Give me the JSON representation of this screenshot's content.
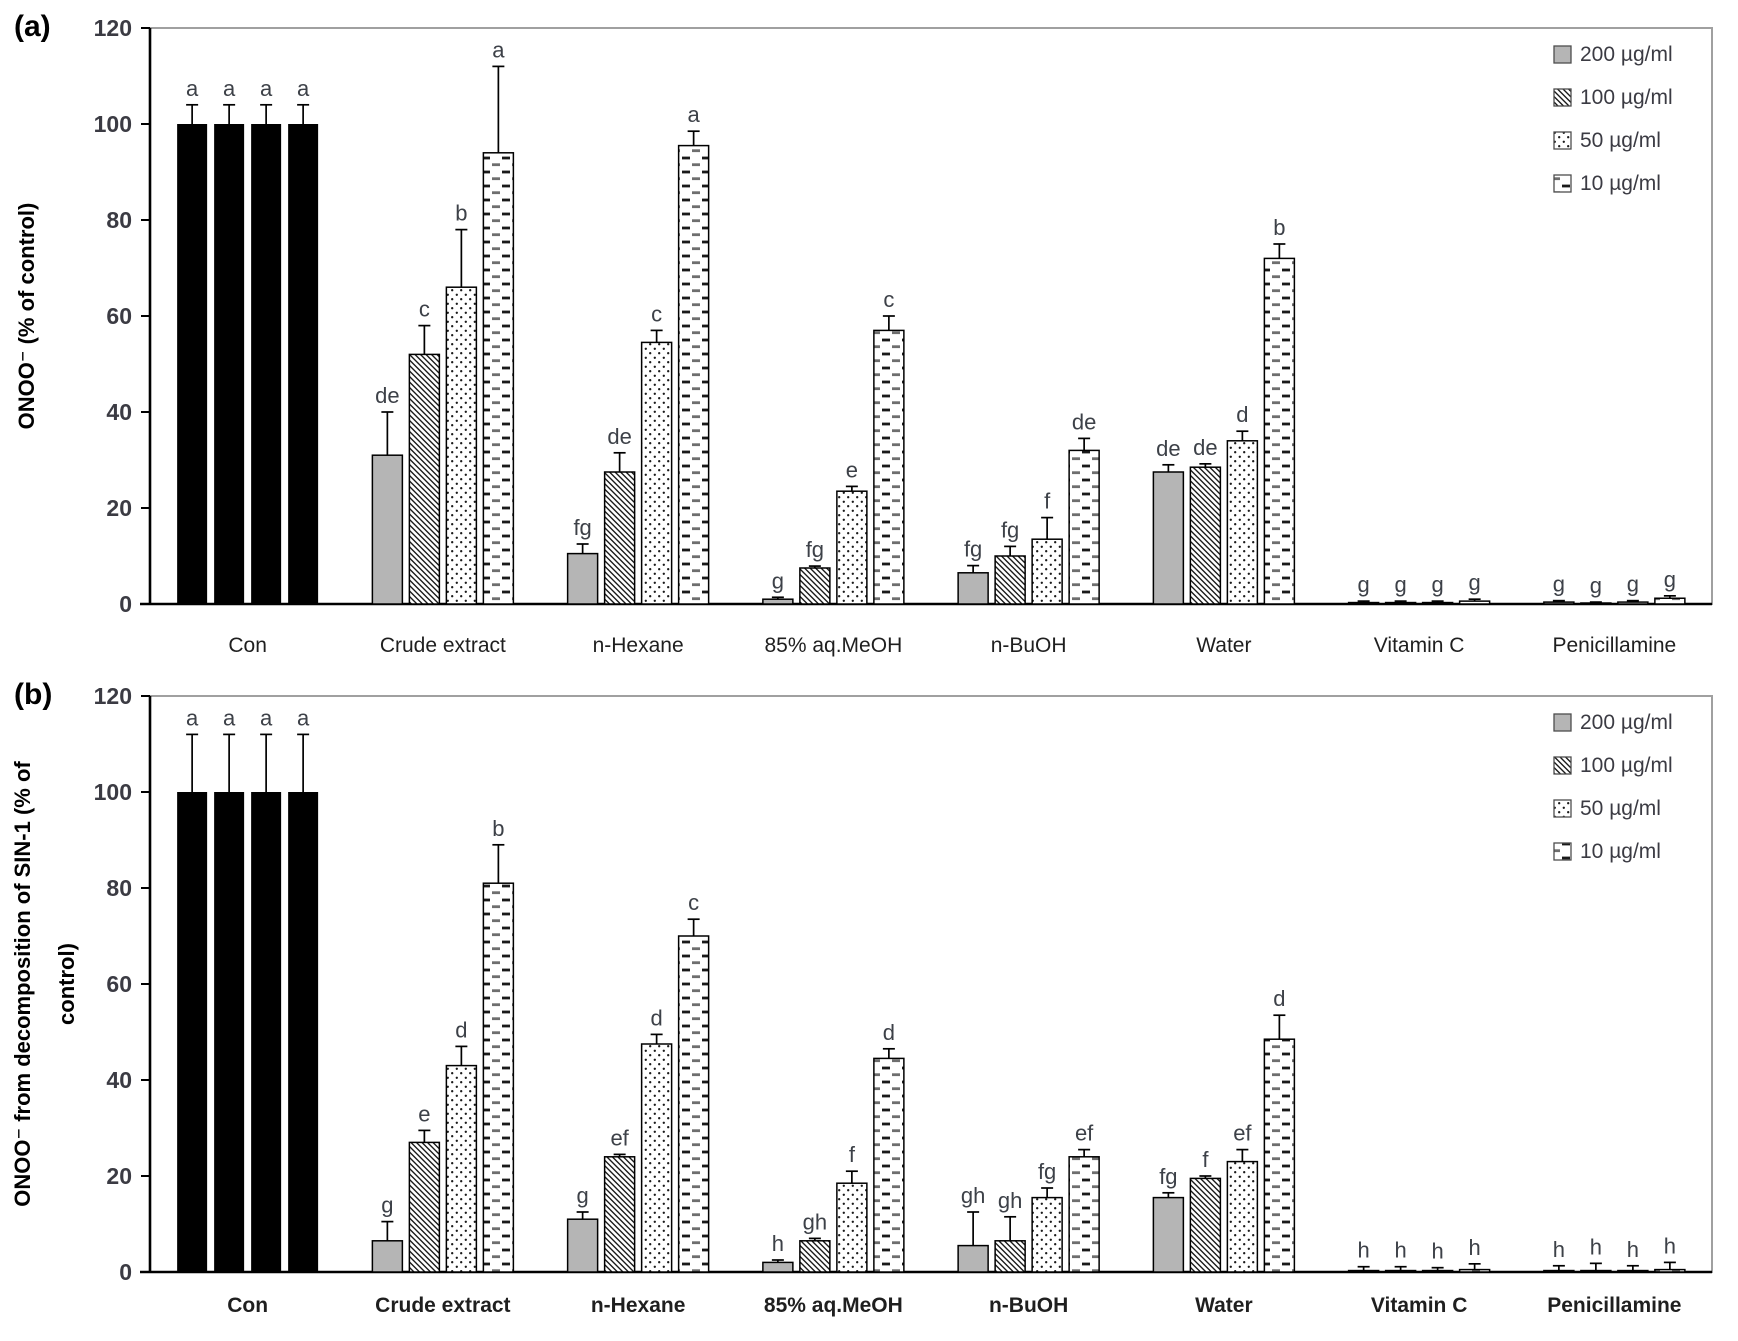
{
  "figure": {
    "background": "#ffffff",
    "colors": {
      "bar_black": "#000000",
      "bar_gray": "#b5b5b5",
      "bar_outline": "#000000",
      "pattern_ink": "#1a1a1a",
      "pattern_ink_soft": "#6e6e6e",
      "axis_line": "#000000",
      "plot_border": "#a0a0a0",
      "tick_text": "#3b3b43",
      "letter_text": "#3d4148",
      "category_text": "#1f1f1f"
    },
    "legend_position": "top-right-inside"
  },
  "chart_data": [
    {
      "type": "bar",
      "panel_label": "(a)",
      "ylabel_lines": [
        "ONOO⁻ (% of control)"
      ],
      "ylim": [
        0,
        120
      ],
      "ytick_step": 20,
      "yticks": [
        0,
        20,
        40,
        60,
        80,
        100,
        120
      ],
      "grid": false,
      "categories_bold": false,
      "categories": [
        "Con",
        "Crude extract",
        "n-Hexane",
        "85% aq.MeOH",
        "n-BuOH",
        "Water",
        "Vitamin C",
        "Penicillamine"
      ],
      "control_category": "Con",
      "control_fill": "solid-black",
      "series": [
        {
          "name": "200 µg/ml",
          "pattern": "solid-gray",
          "values": [
            100,
            31,
            10.5,
            1,
            6.5,
            27.5,
            0.3,
            0.4
          ],
          "errors": [
            4,
            9,
            2,
            0.4,
            1.5,
            1.5,
            0.3,
            0.3
          ],
          "letters": [
            "a",
            "de",
            "fg",
            "g",
            "fg",
            "de",
            "g",
            "g"
          ]
        },
        {
          "name": "100 µg/ml",
          "pattern": "diagonal-hatch",
          "values": [
            100,
            52,
            27.5,
            7.5,
            10,
            28.5,
            0.3,
            0.2
          ],
          "errors": [
            4,
            6,
            4,
            0.4,
            2,
            0.7,
            0.3,
            0.2
          ],
          "letters": [
            "a",
            "c",
            "de",
            "fg",
            "fg",
            "de",
            "g",
            "g"
          ]
        },
        {
          "name": "50 µg/ml",
          "pattern": "dots",
          "values": [
            100,
            66,
            54.5,
            23.5,
            13.5,
            34,
            0.3,
            0.4
          ],
          "errors": [
            4,
            12,
            2.5,
            1,
            4.5,
            2,
            0.3,
            0.3
          ],
          "letters": [
            "a",
            "b",
            "c",
            "e",
            "f",
            "d",
            "g",
            "g"
          ]
        },
        {
          "name": "10 µg/ml",
          "pattern": "dashes",
          "values": [
            100,
            94,
            95.5,
            57,
            32,
            72,
            0.6,
            1.2
          ],
          "errors": [
            4,
            18,
            3,
            3,
            2.5,
            3,
            0.4,
            0.5
          ],
          "letters": [
            "a",
            "a",
            "a",
            "c",
            "de",
            "b",
            "g",
            "g"
          ]
        }
      ],
      "legend": [
        "200 µg/ml",
        "100 µg/ml",
        "50 µg/ml",
        "10 µg/ml"
      ]
    },
    {
      "type": "bar",
      "panel_label": "(b)",
      "ylabel_lines": [
        "ONOO⁻ from decomposition of SIN-1 (% of",
        "control)"
      ],
      "ylim": [
        0,
        120
      ],
      "ytick_step": 20,
      "yticks": [
        0,
        20,
        40,
        60,
        80,
        100,
        120
      ],
      "grid": false,
      "categories_bold": true,
      "categories": [
        "Con",
        "Crude extract",
        "n-Hexane",
        "85% aq.MeOH",
        "n-BuOH",
        "Water",
        "Vitamin C",
        "Penicillamine"
      ],
      "control_category": "Con",
      "control_fill": "solid-black",
      "series": [
        {
          "name": "200 µg/ml",
          "pattern": "solid-gray",
          "values": [
            100,
            6.5,
            11,
            2,
            5.5,
            15.5,
            0.3,
            0.3
          ],
          "errors": [
            12,
            4,
            1.5,
            0.5,
            7,
            1,
            0.8,
            1
          ],
          "letters": [
            "a",
            "g",
            "g",
            "h",
            "gh",
            "fg",
            "h",
            "h"
          ]
        },
        {
          "name": "100 µg/ml",
          "pattern": "diagonal-hatch",
          "values": [
            100,
            27,
            24,
            6.5,
            6.5,
            19.5,
            0.3,
            0.3
          ],
          "errors": [
            12,
            2.5,
            0.5,
            0.5,
            5,
            0.5,
            0.8,
            1.5
          ],
          "letters": [
            "a",
            "e",
            "ef",
            "gh",
            "gh",
            "f",
            "h",
            "h"
          ]
        },
        {
          "name": "50 µg/ml",
          "pattern": "dots",
          "values": [
            100,
            43,
            47.5,
            18.5,
            15.5,
            23,
            0.3,
            0.3
          ],
          "errors": [
            12,
            4,
            2,
            2.5,
            2,
            2.5,
            0.6,
            1
          ],
          "letters": [
            "a",
            "d",
            "d",
            "f",
            "fg",
            "ef",
            "h",
            "h"
          ]
        },
        {
          "name": "10 µg/ml",
          "pattern": "dashes",
          "values": [
            100,
            81,
            70,
            44.5,
            24,
            48.5,
            0.5,
            0.5
          ],
          "errors": [
            12,
            8,
            3.5,
            2,
            1.5,
            5,
            1.2,
            1.5
          ],
          "letters": [
            "a",
            "b",
            "c",
            "d",
            "ef",
            "d",
            "h",
            "h"
          ]
        }
      ],
      "legend": [
        "200 µg/ml",
        "100 µg/ml",
        "50 µg/ml",
        "10 µg/ml"
      ]
    }
  ]
}
